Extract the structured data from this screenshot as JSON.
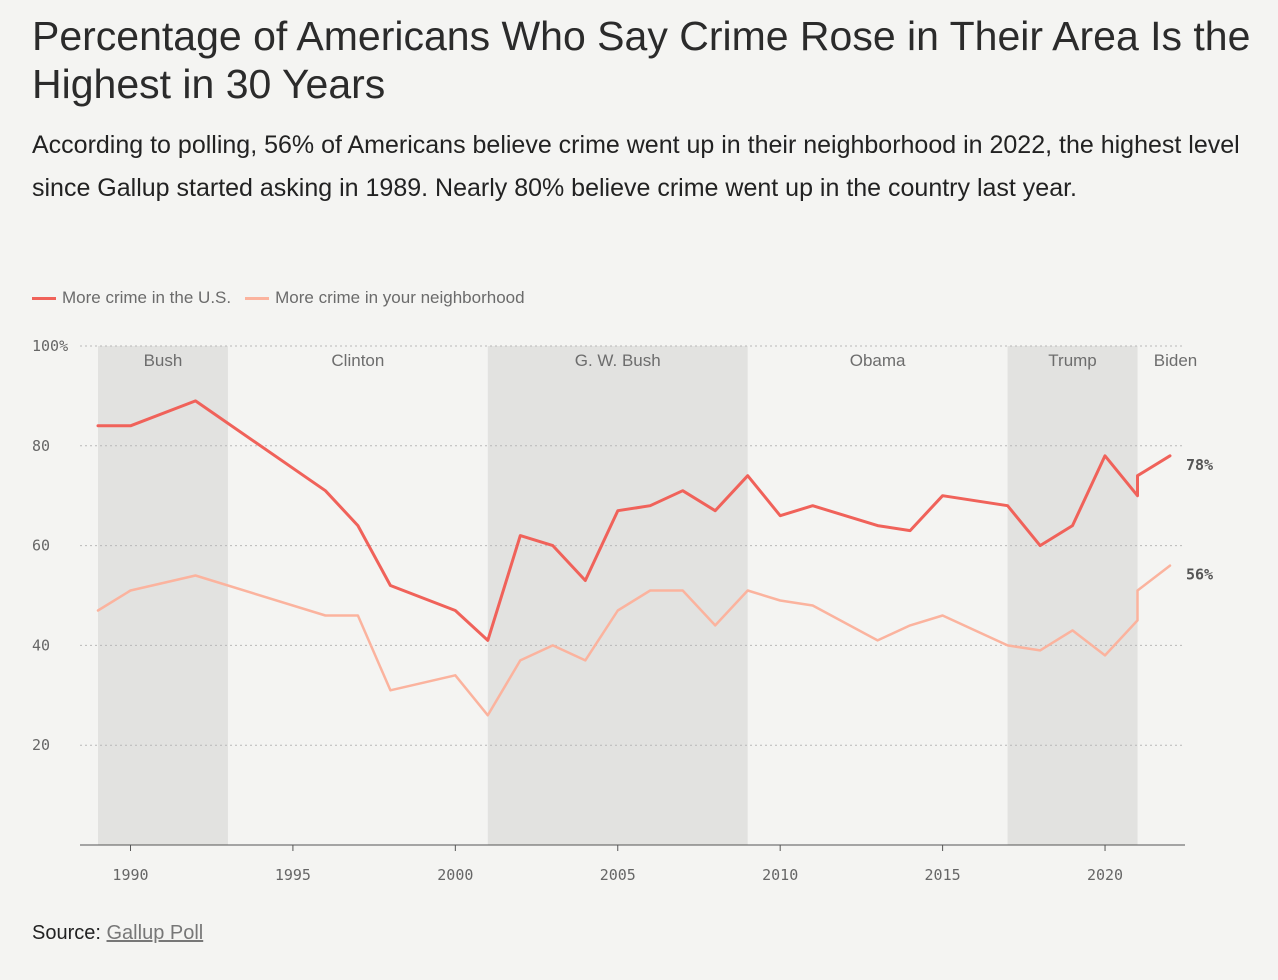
{
  "header": {
    "title": "Percentage of Americans Who Say Crime Rose in Their Area Is the Highest in 30 Years",
    "subtitle": "According to polling, 56% of Americans believe crime went up in their neighborhood in 2022, the highest level since Gallup started asking in 1989. Nearly 80% believe crime went up in the country last year."
  },
  "legend": [
    {
      "label": "More crime in the U.S.",
      "color": "#f0625a"
    },
    {
      "label": "More crime in your neighborhood",
      "color": "#fbb39e"
    }
  ],
  "source": {
    "label": "Source:",
    "link_text": "Gallup Poll"
  },
  "chart_data": {
    "type": "line",
    "xlim": [
      1989,
      2022
    ],
    "ylim": [
      0,
      100
    ],
    "x_ticks": [
      1990,
      1995,
      2000,
      2005,
      2010,
      2015,
      2020
    ],
    "x_tick_labels": [
      "1990",
      "1995",
      "2000",
      "2005",
      "2010",
      "2015",
      "2020"
    ],
    "y_ticks": [
      20,
      40,
      60,
      80,
      100
    ],
    "y_tick_labels": [
      "20",
      "40",
      "60",
      "80",
      "100%"
    ],
    "grid": true,
    "legend_position": "top-left",
    "presidencies": [
      {
        "name": "Bush",
        "start": 1989,
        "end": 1993,
        "shaded": true
      },
      {
        "name": "Clinton",
        "start": 1993,
        "end": 2001,
        "shaded": false
      },
      {
        "name": "G. W. Bush",
        "start": 2001,
        "end": 2009,
        "shaded": true
      },
      {
        "name": "Obama",
        "start": 2009,
        "end": 2017,
        "shaded": false
      },
      {
        "name": "Trump",
        "start": 2017,
        "end": 2021,
        "shaded": true
      },
      {
        "name": "Biden",
        "start": 2021,
        "end": 2022,
        "shaded": false
      }
    ],
    "series": [
      {
        "name": "More crime in the U.S.",
        "color": "#f0625a",
        "end_label": "78%",
        "points": [
          [
            1989,
            84
          ],
          [
            1990,
            84
          ],
          [
            1992,
            89
          ],
          [
            1996,
            71
          ],
          [
            1997,
            64
          ],
          [
            1998,
            52
          ],
          [
            2000,
            47
          ],
          [
            2001,
            41
          ],
          [
            2002,
            62
          ],
          [
            2003,
            60
          ],
          [
            2004,
            53
          ],
          [
            2005,
            67
          ],
          [
            2006,
            68
          ],
          [
            2007,
            71
          ],
          [
            2008,
            67
          ],
          [
            2009,
            74
          ],
          [
            2010,
            66
          ],
          [
            2011,
            68
          ],
          [
            2013,
            64
          ],
          [
            2014,
            63
          ],
          [
            2015,
            70
          ],
          [
            2017,
            68
          ],
          [
            2018,
            60
          ],
          [
            2019,
            64
          ],
          [
            2020,
            78
          ],
          [
            2021,
            70
          ],
          [
            2021,
            74
          ],
          [
            2022,
            78
          ]
        ]
      },
      {
        "name": "More crime in your neighborhood",
        "color": "#fbb39e",
        "end_label": "56%",
        "points": [
          [
            1989,
            47
          ],
          [
            1990,
            51
          ],
          [
            1992,
            54
          ],
          [
            1996,
            46
          ],
          [
            1997,
            46
          ],
          [
            1998,
            31
          ],
          [
            2000,
            34
          ],
          [
            2001,
            26
          ],
          [
            2002,
            37
          ],
          [
            2003,
            40
          ],
          [
            2004,
            37
          ],
          [
            2005,
            47
          ],
          [
            2006,
            51
          ],
          [
            2007,
            51
          ],
          [
            2008,
            44
          ],
          [
            2009,
            51
          ],
          [
            2010,
            49
          ],
          [
            2011,
            48
          ],
          [
            2013,
            41
          ],
          [
            2014,
            44
          ],
          [
            2015,
            46
          ],
          [
            2017,
            40
          ],
          [
            2018,
            39
          ],
          [
            2019,
            43
          ],
          [
            2020,
            38
          ],
          [
            2021,
            45
          ],
          [
            2021,
            51
          ],
          [
            2022,
            56
          ]
        ]
      }
    ]
  }
}
